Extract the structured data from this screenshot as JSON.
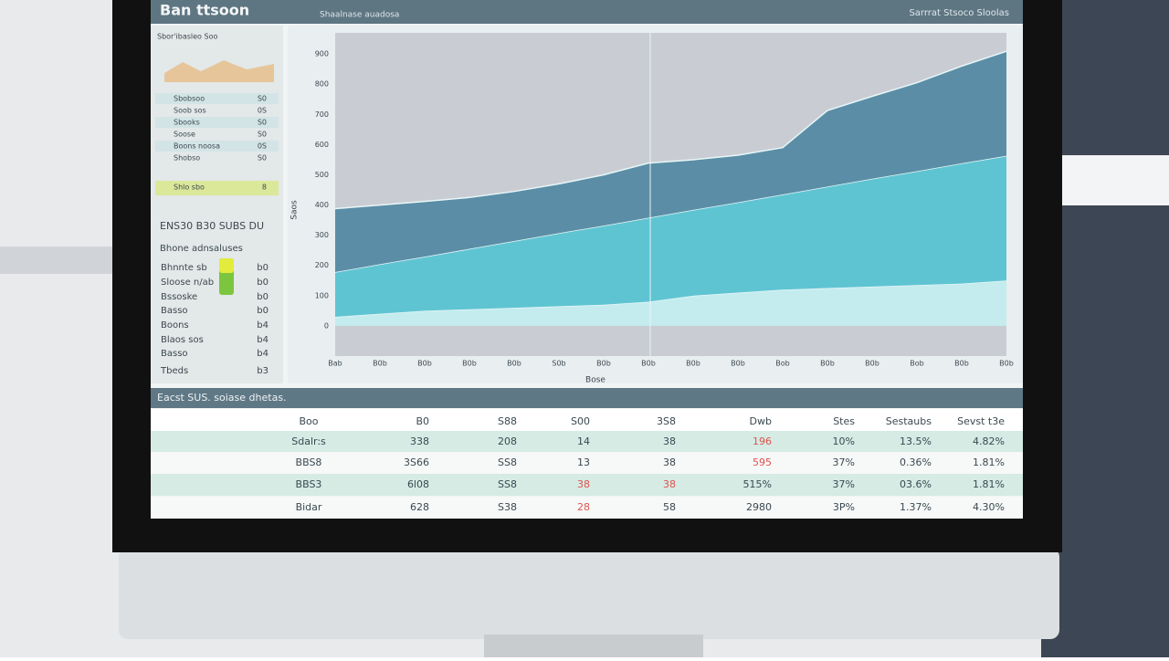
{
  "header": {
    "title": "Ban ttsoon",
    "subtitle": "Shaalnase auadosa",
    "right": "Sarrrat Stsoco Sloolas"
  },
  "sidebar": {
    "caption": "Sbor'ibasleo Soo",
    "top_items": [
      {
        "label": "Sbobsoo",
        "value": "S0"
      },
      {
        "label": "Soob sos",
        "value": "0S"
      },
      {
        "label": "Sbooks",
        "value": "S0"
      },
      {
        "label": "Soose",
        "value": "S0"
      },
      {
        "label": "Boons noosa",
        "value": "0S"
      },
      {
        "label": "Shobso",
        "value": "S0"
      },
      {
        "label": "Shlo sbo",
        "value": "8"
      }
    ],
    "section_title": "ENS30 B30 SUBS DU",
    "section_subtitle": "Bhone adnsaluses",
    "items": [
      {
        "label": "Bhnnte sb",
        "value": "b0"
      },
      {
        "label": "Sloose n/ab",
        "value": "b0"
      },
      {
        "label": "Bssoske",
        "value": "b0"
      },
      {
        "label": "Basso",
        "value": "b0"
      },
      {
        "label": "Boons",
        "value": "b4"
      },
      {
        "label": "Blaos sos",
        "value": "b4"
      },
      {
        "label": "Basso",
        "value": "b4"
      },
      {
        "label": "Tbeds",
        "value": "b3"
      }
    ]
  },
  "chart_data": {
    "type": "area",
    "ylabel": "Saos",
    "xlabel": "Bose",
    "categories": [
      "Bab",
      "B0b",
      "B0b",
      "B0b",
      "B0b",
      "S0b",
      "B0b",
      "B0b",
      "B0b",
      "B0b",
      "Bob",
      "B0b",
      "B0b",
      "Bob",
      "B0b",
      "B0b"
    ],
    "series": [
      {
        "color": "#c4ecee",
        "values": [
          30,
          40,
          50,
          55,
          60,
          65,
          70,
          80,
          100,
          110,
          120,
          125,
          130,
          135,
          140,
          150
        ]
      },
      {
        "color": "#5fc4d2",
        "values": [
          148,
          164,
          179,
          200,
          221,
          242,
          262,
          278,
          284,
          299,
          315,
          336,
          357,
          377,
          398,
          413
        ]
      },
      {
        "color": "#5b8ea6",
        "values": [
          210,
          196,
          183,
          170,
          164,
          163,
          168,
          181,
          166,
          156,
          155,
          252,
          273,
          293,
          322,
          346
        ]
      }
    ],
    "ylim": [
      -100,
      970
    ],
    "yticks": [
      0,
      100,
      200,
      300,
      400,
      500,
      600,
      700,
      800,
      900
    ],
    "grid": false
  },
  "table": {
    "title": "Eacst SUS. soiase dhetas.",
    "header": [
      "Boo",
      "B0",
      "S88",
      "S00",
      "3S8",
      "Dwb",
      "Stes",
      "Sestaubs",
      "Sevst t3e"
    ],
    "rows": [
      [
        "Sdalr:s",
        "338",
        "208",
        "14",
        "38",
        "196",
        "10%",
        "13.5%",
        "4.82%"
      ],
      [
        "BBS8",
        "3S66",
        "SS8",
        "13",
        "38",
        "595",
        "37%",
        "0.36%",
        "1.81%"
      ],
      [
        "BBS3",
        "6l08",
        "SS8",
        "38",
        "38",
        "515%",
        "37%",
        "03.6%",
        "1.81%"
      ],
      [
        "Bidar",
        "628",
        "S38",
        "28",
        "58",
        "2980",
        "3P%",
        "1.37%",
        "4.30%"
      ]
    ],
    "alert_color": "#e0524f",
    "alert_cells": [
      [
        0,
        5
      ],
      [
        1,
        5
      ],
      [
        2,
        3
      ],
      [
        2,
        4
      ],
      [
        3,
        3
      ]
    ]
  }
}
